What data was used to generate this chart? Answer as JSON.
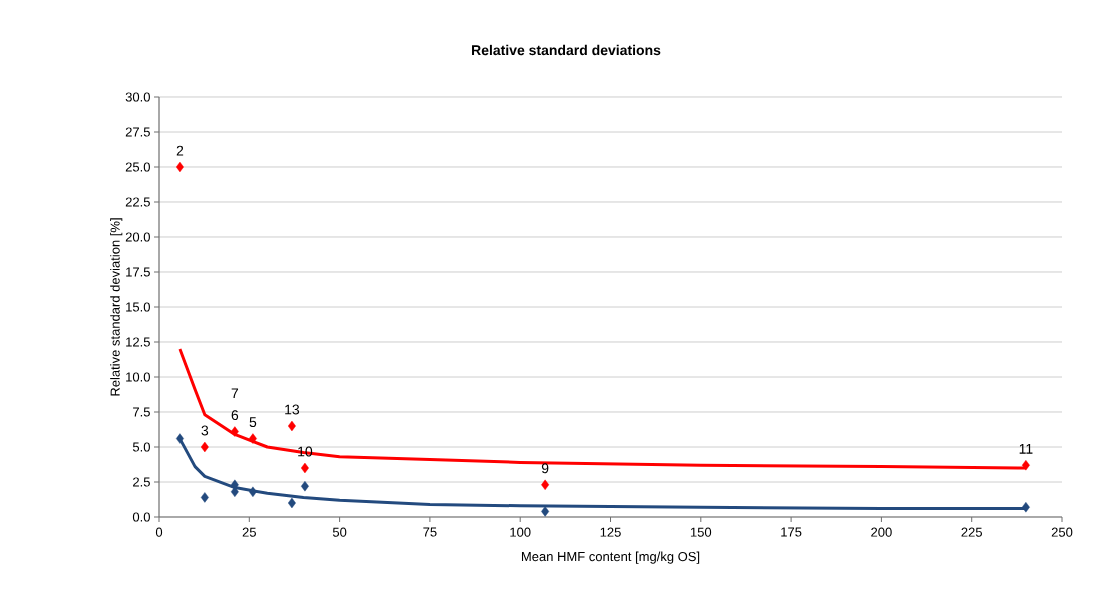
{
  "chart_data": {
    "type": "scatter",
    "title": "Relative standard deviations",
    "xlabel": "Mean HMF content [mg/kg OS]",
    "ylabel": "Relative standard deviation [%]",
    "xlim": [
      0,
      250
    ],
    "xticks": [
      0,
      25,
      50,
      75,
      100,
      125,
      150,
      175,
      200,
      225,
      250
    ],
    "ylim": [
      0,
      30
    ],
    "yticks": [
      {
        "value": 0,
        "label": "0.0"
      },
      2.5,
      {
        "value": 5,
        "label": "5.0"
      },
      7.5,
      {
        "value": 10,
        "label": "10.0"
      },
      12.5,
      {
        "value": 15,
        "label": "15.0"
      },
      17.5,
      {
        "value": 20,
        "label": "20.0"
      },
      22.5,
      {
        "value": 25,
        "label": "25.0"
      },
      27.5,
      {
        "value": 30,
        "label": "30.0"
      }
    ],
    "grid": "y",
    "marker": "diamond",
    "series": [
      {
        "color": "#ff0000",
        "x": [
          5.8,
          12.7,
          21.0,
          26.0,
          36.8,
          40.4,
          106.9,
          240.0
        ],
        "values": [
          25.0,
          5.0,
          6.1,
          5.6,
          6.5,
          3.5,
          2.3,
          3.7
        ]
      },
      {
        "color": "#234a7e",
        "x": [
          5.8,
          12.7,
          21.0,
          21.0,
          26.0,
          36.8,
          40.4,
          106.9,
          240.0
        ],
        "values": [
          5.6,
          1.4,
          1.8,
          2.3,
          1.8,
          1.0,
          2.2,
          0.4,
          0.7
        ]
      },
      {
        "type": "line",
        "marker": "none",
        "color": "#ff0000",
        "x": [
          5.8,
          10,
          12.7,
          21,
          30,
          40,
          50,
          75,
          100,
          125,
          150,
          200,
          240
        ],
        "values": [
          12.0,
          9.1,
          7.3,
          5.9,
          5.0,
          4.6,
          4.3,
          4.1,
          3.9,
          3.8,
          3.7,
          3.6,
          3.5
        ]
      },
      {
        "type": "line",
        "marker": "none",
        "color": "#234a7e",
        "x": [
          5.8,
          10,
          12.7,
          21,
          30,
          40,
          50,
          75,
          100,
          150,
          200,
          240
        ],
        "values": [
          5.6,
          3.6,
          2.9,
          2.1,
          1.7,
          1.4,
          1.2,
          0.9,
          0.8,
          0.7,
          0.6,
          0.6
        ]
      }
    ],
    "annotations": [
      {
        "text": "2",
        "x": 5.8,
        "y": 25.0
      },
      {
        "text": "3",
        "x": 12.7,
        "y": 5.0
      },
      {
        "text": "6",
        "x": 21.0,
        "y": 6.1
      },
      {
        "text": "7",
        "x": 21.0,
        "y": 6.1
      },
      {
        "text": "5",
        "x": 26.0,
        "y": 5.6
      },
      {
        "text": "13",
        "x": 36.8,
        "y": 6.5
      },
      {
        "text": "10",
        "x": 40.4,
        "y": 3.5
      },
      {
        "text": "9",
        "x": 106.9,
        "y": 2.3
      },
      {
        "text": "11",
        "x": 240.0,
        "y": 3.7
      }
    ]
  }
}
